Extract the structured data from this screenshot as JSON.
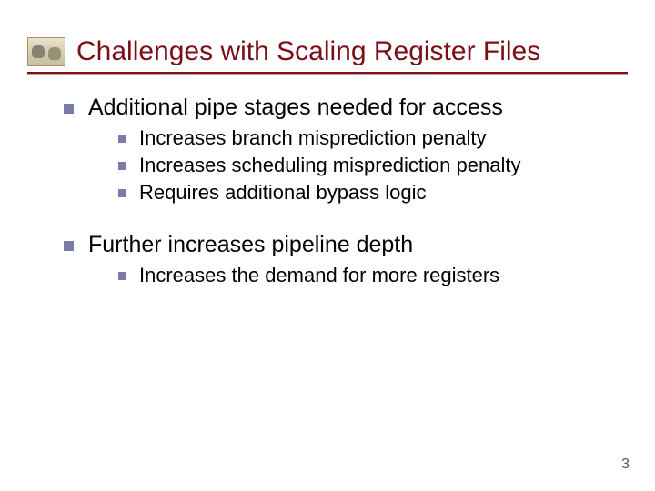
{
  "title": "Challenges with Scaling Register Files",
  "colors": {
    "title_color": "#7b0f17",
    "bullet_color": "#7b7ba8",
    "text_color": "#000000",
    "background": "#ffffff"
  },
  "typography": {
    "title_fontsize": 30,
    "level1_fontsize": 25,
    "level2_fontsize": 22,
    "pagenum_fontsize": 16,
    "font_family": "Verdana"
  },
  "bullets": [
    {
      "text": "Additional pipe stages needed for access",
      "children": [
        "Increases branch misprediction penalty",
        "Increases scheduling misprediction penalty",
        "Requires additional bypass logic"
      ]
    },
    {
      "text": "Further increases pipeline depth",
      "children": [
        "Increases the demand for more registers"
      ]
    }
  ],
  "page_number": "3"
}
